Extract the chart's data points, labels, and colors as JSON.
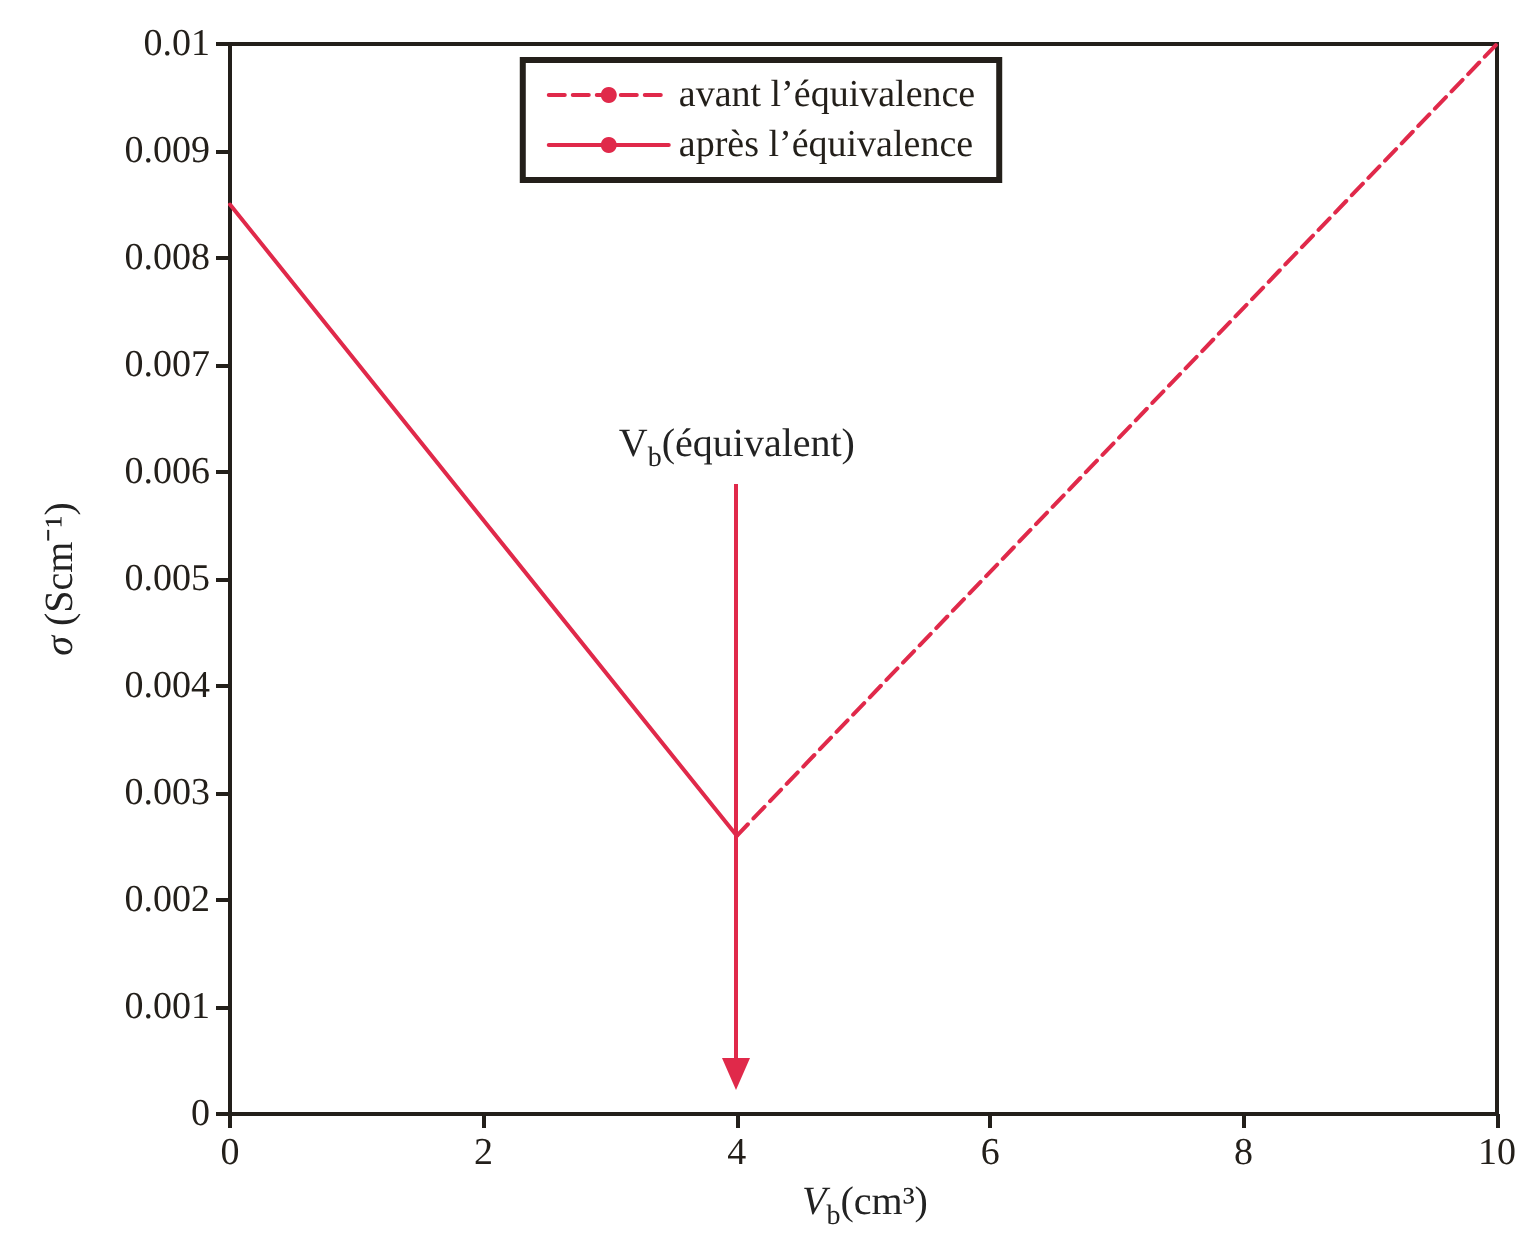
{
  "chart_data": {
    "type": "line",
    "xlabel": "V$_{b}$(cm³)",
    "ylabel": "σ (Scm⁻¹)",
    "xlim": [
      0,
      10
    ],
    "xticks": [
      0,
      2,
      4,
      6,
      8,
      10
    ],
    "ylim": [
      0,
      0.01
    ],
    "yticks": [
      0,
      0.001,
      0.002,
      0.003,
      0.004,
      0.005,
      0.006,
      0.007,
      0.008,
      0.009,
      0.01
    ],
    "series": [
      {
        "name": "avant l’équivalence",
        "color": "#e0294a",
        "line_style": "dashed",
        "x": [
          4,
          10
        ],
        "values": [
          0.0026,
          0.01
        ]
      },
      {
        "name": "après l’équivalence",
        "color": "#e0294a",
        "line_style": "solid",
        "x": [
          0,
          4
        ],
        "values": [
          0.0085,
          0.0026
        ]
      }
    ],
    "annotations": [
      "V$_{b}$(équivalent)"
    ],
    "grid": false,
    "legend": "top",
    "marker": "none"
  }
}
